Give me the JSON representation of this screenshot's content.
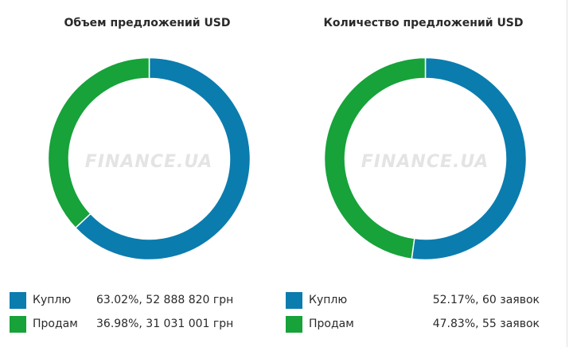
{
  "colors": {
    "buy": "#0b7cae",
    "sell": "#17a23a"
  },
  "watermark": "FINANCE.UA",
  "chart_data": [
    {
      "type": "pie",
      "title": "Объем предложений USD",
      "categories": [
        "Куплю",
        "Продам"
      ],
      "values": [
        63.02,
        36.98
      ],
      "legend": [
        {
          "label": "Куплю",
          "value_text": "63.02%, 52 888 820 грн"
        },
        {
          "label": "Продам",
          "value_text": "36.98%, 31 031 001 грн"
        }
      ],
      "legend_position": "bottom",
      "donut": true
    },
    {
      "type": "pie",
      "title": "Количество предложений USD",
      "categories": [
        "Куплю",
        "Продам"
      ],
      "values": [
        52.17,
        47.83
      ],
      "legend": [
        {
          "label": "Куплю",
          "value_text": "52.17%, 60 заявок"
        },
        {
          "label": "Продам",
          "value_text": "47.83%, 55 заявок"
        }
      ],
      "legend_position": "bottom",
      "donut": true
    }
  ]
}
